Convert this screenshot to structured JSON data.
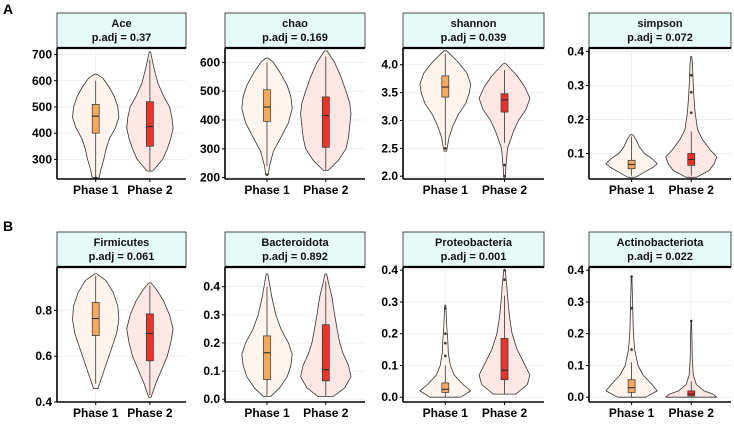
{
  "figure": {
    "row_labels": [
      "A",
      "B"
    ],
    "group_labels": [
      "Phase 1",
      "Phase 2"
    ],
    "colors": {
      "phase1_violin": "#fff5ee",
      "phase2_violin": "#fde8e6",
      "phase1_box": "#f5a95c",
      "phase2_box": "#e8352a",
      "strip": "#e6fbf8",
      "grid": "#ececec"
    }
  },
  "chart_data": [
    {
      "type": "violin",
      "title": "Ace",
      "subtitle": "p.adj = 0.37",
      "ylim": [
        225,
        725
      ],
      "yticks": [
        300,
        400,
        500,
        600,
        700
      ],
      "categories": [
        "Phase 1",
        "Phase 2"
      ],
      "series": [
        {
          "min": 230,
          "max": 625,
          "q1": 400,
          "median": 465,
          "q3": 510,
          "whisker_low": 230,
          "whisker_high": 600,
          "outliers": [
            230
          ],
          "density": [
            [
              230,
              0.15
            ],
            [
              260,
              0.22
            ],
            [
              300,
              0.35
            ],
            [
              340,
              0.45
            ],
            [
              380,
              0.6
            ],
            [
              420,
              0.85
            ],
            [
              460,
              1.0
            ],
            [
              500,
              0.95
            ],
            [
              540,
              0.8
            ],
            [
              580,
              0.55
            ],
            [
              610,
              0.3
            ],
            [
              625,
              0.05
            ]
          ]
        },
        {
          "min": 255,
          "max": 710,
          "q1": 350,
          "median": 425,
          "q3": 520,
          "whisker_low": 255,
          "whisker_high": 680,
          "outliers": [],
          "density": [
            [
              255,
              0.12
            ],
            [
              300,
              0.55
            ],
            [
              340,
              0.75
            ],
            [
              380,
              0.9
            ],
            [
              420,
              1.0
            ],
            [
              460,
              0.95
            ],
            [
              500,
              0.85
            ],
            [
              540,
              0.6
            ],
            [
              590,
              0.35
            ],
            [
              640,
              0.2
            ],
            [
              680,
              0.1
            ],
            [
              710,
              0.03
            ]
          ]
        }
      ]
    },
    {
      "type": "violin",
      "title": "chao",
      "subtitle": "p.adj = 0.169",
      "ylim": [
        195,
        650
      ],
      "yticks": [
        200,
        300,
        400,
        500,
        600
      ],
      "categories": [
        "Phase 1",
        "Phase 2"
      ],
      "series": [
        {
          "min": 210,
          "max": 615,
          "q1": 395,
          "median": 445,
          "q3": 505,
          "whisker_low": 240,
          "whisker_high": 600,
          "outliers": [
            210
          ],
          "density": [
            [
              210,
              0.05
            ],
            [
              240,
              0.1
            ],
            [
              290,
              0.25
            ],
            [
              340,
              0.55
            ],
            [
              390,
              0.85
            ],
            [
              440,
              1.0
            ],
            [
              480,
              0.95
            ],
            [
              520,
              0.8
            ],
            [
              560,
              0.55
            ],
            [
              600,
              0.25
            ],
            [
              615,
              0.05
            ]
          ]
        },
        {
          "min": 225,
          "max": 640,
          "q1": 305,
          "median": 415,
          "q3": 480,
          "whisker_low": 225,
          "whisker_high": 620,
          "outliers": [],
          "density": [
            [
              225,
              0.1
            ],
            [
              260,
              0.5
            ],
            [
              300,
              0.8
            ],
            [
              340,
              0.9
            ],
            [
              380,
              0.95
            ],
            [
              420,
              1.0
            ],
            [
              460,
              0.95
            ],
            [
              500,
              0.8
            ],
            [
              550,
              0.6
            ],
            [
              600,
              0.35
            ],
            [
              640,
              0.05
            ]
          ]
        }
      ]
    },
    {
      "type": "violin",
      "title": "shannon",
      "subtitle": "p.adj = 0.039",
      "ylim": [
        1.95,
        4.3
      ],
      "yticks": [
        2.0,
        2.5,
        3.0,
        3.5,
        4.0
      ],
      "categories": [
        "Phase 1",
        "Phase 2"
      ],
      "series": [
        {
          "min": 2.45,
          "max": 4.25,
          "q1": 3.42,
          "median": 3.6,
          "q3": 3.8,
          "whisker_low": 2.55,
          "whisker_high": 4.2,
          "outliers": [
            2.5
          ],
          "density": [
            [
              2.45,
              0.05
            ],
            [
              2.7,
              0.15
            ],
            [
              2.9,
              0.3
            ],
            [
              3.1,
              0.5
            ],
            [
              3.3,
              0.8
            ],
            [
              3.5,
              0.95
            ],
            [
              3.65,
              1.0
            ],
            [
              3.85,
              0.85
            ],
            [
              4.05,
              0.5
            ],
            [
              4.25,
              0.05
            ]
          ]
        },
        {
          "min": 1.98,
          "max": 4.02,
          "q1": 3.15,
          "median": 3.37,
          "q3": 3.48,
          "whisker_low": 2.6,
          "whisker_high": 3.9,
          "outliers": [
            2.2,
            2.0
          ],
          "density": [
            [
              1.98,
              0.03
            ],
            [
              2.2,
              0.06
            ],
            [
              2.5,
              0.12
            ],
            [
              2.8,
              0.35
            ],
            [
              3.0,
              0.55
            ],
            [
              3.2,
              0.85
            ],
            [
              3.4,
              1.0
            ],
            [
              3.6,
              0.8
            ],
            [
              3.8,
              0.5
            ],
            [
              4.02,
              0.05
            ]
          ]
        }
      ]
    },
    {
      "type": "violin",
      "title": "simpson",
      "subtitle": "p.adj = 0.072",
      "ylim": [
        0.025,
        0.41
      ],
      "yticks": [
        0.1,
        0.2,
        0.3,
        0.4
      ],
      "categories": [
        "Phase 1",
        "Phase 2"
      ],
      "series": [
        {
          "min": 0.03,
          "max": 0.155,
          "q1": 0.055,
          "median": 0.068,
          "q3": 0.08,
          "whisker_low": 0.035,
          "whisker_high": 0.15,
          "outliers": [],
          "density": [
            [
              0.03,
              0.15
            ],
            [
              0.045,
              0.5
            ],
            [
              0.06,
              0.85
            ],
            [
              0.07,
              1.0
            ],
            [
              0.085,
              0.8
            ],
            [
              0.1,
              0.5
            ],
            [
              0.12,
              0.3
            ],
            [
              0.14,
              0.18
            ],
            [
              0.155,
              0.05
            ]
          ]
        },
        {
          "min": 0.03,
          "max": 0.385,
          "q1": 0.065,
          "median": 0.082,
          "q3": 0.1,
          "whisker_low": 0.035,
          "whisker_high": 0.165,
          "outliers": [
            0.28,
            0.33,
            0.22
          ],
          "density": [
            [
              0.03,
              0.2
            ],
            [
              0.05,
              0.7
            ],
            [
              0.07,
              0.9
            ],
            [
              0.09,
              1.0
            ],
            [
              0.11,
              0.75
            ],
            [
              0.14,
              0.45
            ],
            [
              0.17,
              0.25
            ],
            [
              0.22,
              0.15
            ],
            [
              0.27,
              0.1
            ],
            [
              0.32,
              0.07
            ],
            [
              0.36,
              0.05
            ],
            [
              0.385,
              0.02
            ]
          ]
        }
      ]
    },
    {
      "type": "violin",
      "title": "Firmicutes",
      "subtitle": "p.adj = 0.061",
      "ylim": [
        0.4,
        0.99
      ],
      "yticks": [
        0.4,
        0.6,
        0.8
      ],
      "categories": [
        "Phase 1",
        "Phase 2"
      ],
      "series": [
        {
          "min": 0.46,
          "max": 0.96,
          "q1": 0.69,
          "median": 0.765,
          "q3": 0.835,
          "whisker_low": 0.48,
          "whisker_high": 0.95,
          "outliers": [],
          "density": [
            [
              0.46,
              0.1
            ],
            [
              0.52,
              0.3
            ],
            [
              0.58,
              0.5
            ],
            [
              0.64,
              0.7
            ],
            [
              0.7,
              0.9
            ],
            [
              0.76,
              1.0
            ],
            [
              0.82,
              0.95
            ],
            [
              0.88,
              0.75
            ],
            [
              0.93,
              0.45
            ],
            [
              0.96,
              0.05
            ]
          ]
        },
        {
          "min": 0.42,
          "max": 0.92,
          "q1": 0.58,
          "median": 0.7,
          "q3": 0.785,
          "whisker_low": 0.43,
          "whisker_high": 0.91,
          "outliers": [],
          "density": [
            [
              0.42,
              0.05
            ],
            [
              0.48,
              0.25
            ],
            [
              0.54,
              0.5
            ],
            [
              0.6,
              0.75
            ],
            [
              0.66,
              0.9
            ],
            [
              0.72,
              1.0
            ],
            [
              0.78,
              0.85
            ],
            [
              0.84,
              0.6
            ],
            [
              0.89,
              0.3
            ],
            [
              0.92,
              0.05
            ]
          ]
        }
      ]
    },
    {
      "type": "violin",
      "title": "Bacteroidota",
      "subtitle": "p.adj = 0.892",
      "ylim": [
        -0.01,
        0.47
      ],
      "yticks": [
        0.0,
        0.1,
        0.2,
        0.3,
        0.4
      ],
      "categories": [
        "Phase 1",
        "Phase 2"
      ],
      "series": [
        {
          "min": 0.01,
          "max": 0.445,
          "q1": 0.07,
          "median": 0.165,
          "q3": 0.225,
          "whisker_low": 0.01,
          "whisker_high": 0.4,
          "outliers": [],
          "density": [
            [
              0.01,
              0.15
            ],
            [
              0.04,
              0.5
            ],
            [
              0.08,
              0.8
            ],
            [
              0.12,
              0.95
            ],
            [
              0.16,
              1.0
            ],
            [
              0.2,
              0.85
            ],
            [
              0.25,
              0.55
            ],
            [
              0.3,
              0.35
            ],
            [
              0.36,
              0.2
            ],
            [
              0.41,
              0.1
            ],
            [
              0.445,
              0.03
            ]
          ]
        },
        {
          "min": 0.01,
          "max": 0.445,
          "q1": 0.065,
          "median": 0.105,
          "q3": 0.265,
          "whisker_low": 0.01,
          "whisker_high": 0.42,
          "outliers": [],
          "density": [
            [
              0.01,
              0.3
            ],
            [
              0.04,
              0.75
            ],
            [
              0.08,
              1.0
            ],
            [
              0.12,
              0.9
            ],
            [
              0.16,
              0.7
            ],
            [
              0.2,
              0.55
            ],
            [
              0.25,
              0.45
            ],
            [
              0.3,
              0.35
            ],
            [
              0.36,
              0.25
            ],
            [
              0.41,
              0.12
            ],
            [
              0.445,
              0.03
            ]
          ]
        }
      ]
    },
    {
      "type": "violin",
      "title": "Proteobacteria",
      "subtitle": "p.adj = 0.001",
      "ylim": [
        -0.015,
        0.41
      ],
      "yticks": [
        0.0,
        0.1,
        0.2,
        0.3,
        0.4
      ],
      "categories": [
        "Phase 1",
        "Phase 2"
      ],
      "series": [
        {
          "min": 0.0,
          "max": 0.29,
          "q1": 0.015,
          "median": 0.025,
          "q3": 0.045,
          "whisker_low": 0.0,
          "whisker_high": 0.1,
          "outliers": [
            0.13,
            0.17,
            0.2,
            0.28
          ],
          "density": [
            [
              0.0,
              0.6
            ],
            [
              0.02,
              1.0
            ],
            [
              0.04,
              0.7
            ],
            [
              0.07,
              0.35
            ],
            [
              0.1,
              0.2
            ],
            [
              0.14,
              0.12
            ],
            [
              0.18,
              0.1
            ],
            [
              0.22,
              0.06
            ],
            [
              0.26,
              0.04
            ],
            [
              0.29,
              0.02
            ]
          ]
        },
        {
          "min": 0.01,
          "max": 0.405,
          "q1": 0.055,
          "median": 0.085,
          "q3": 0.185,
          "whisker_low": 0.01,
          "whisker_high": 0.32,
          "outliers": [
            0.37,
            0.4
          ],
          "density": [
            [
              0.01,
              0.45
            ],
            [
              0.04,
              0.9
            ],
            [
              0.07,
              1.0
            ],
            [
              0.11,
              0.75
            ],
            [
              0.15,
              0.5
            ],
            [
              0.2,
              0.3
            ],
            [
              0.25,
              0.2
            ],
            [
              0.3,
              0.14
            ],
            [
              0.35,
              0.09
            ],
            [
              0.4,
              0.03
            ]
          ]
        }
      ]
    },
    {
      "type": "violin",
      "title": "Actinobacteriota",
      "subtitle": "p.adj = 0.022",
      "ylim": [
        -0.015,
        0.41
      ],
      "yticks": [
        0.0,
        0.1,
        0.2,
        0.3,
        0.4
      ],
      "categories": [
        "Phase 1",
        "Phase 2"
      ],
      "series": [
        {
          "min": 0.0,
          "max": 0.38,
          "q1": 0.015,
          "median": 0.03,
          "q3": 0.055,
          "whisker_low": 0.0,
          "whisker_high": 0.11,
          "outliers": [
            0.15,
            0.28,
            0.38
          ],
          "density": [
            [
              0.0,
              0.55
            ],
            [
              0.02,
              1.0
            ],
            [
              0.04,
              0.8
            ],
            [
              0.07,
              0.45
            ],
            [
              0.1,
              0.25
            ],
            [
              0.15,
              0.12
            ],
            [
              0.2,
              0.07
            ],
            [
              0.26,
              0.05
            ],
            [
              0.32,
              0.03
            ],
            [
              0.38,
              0.01
            ]
          ]
        },
        {
          "min": 0.0,
          "max": 0.24,
          "q1": 0.004,
          "median": 0.01,
          "q3": 0.02,
          "whisker_low": 0.0,
          "whisker_high": 0.05,
          "outliers": [
            0.24
          ],
          "density": [
            [
              0.0,
              1.0
            ],
            [
              0.01,
              0.85
            ],
            [
              0.02,
              0.5
            ],
            [
              0.04,
              0.2
            ],
            [
              0.07,
              0.08
            ],
            [
              0.12,
              0.04
            ],
            [
              0.18,
              0.03
            ],
            [
              0.24,
              0.01
            ]
          ]
        }
      ]
    }
  ]
}
